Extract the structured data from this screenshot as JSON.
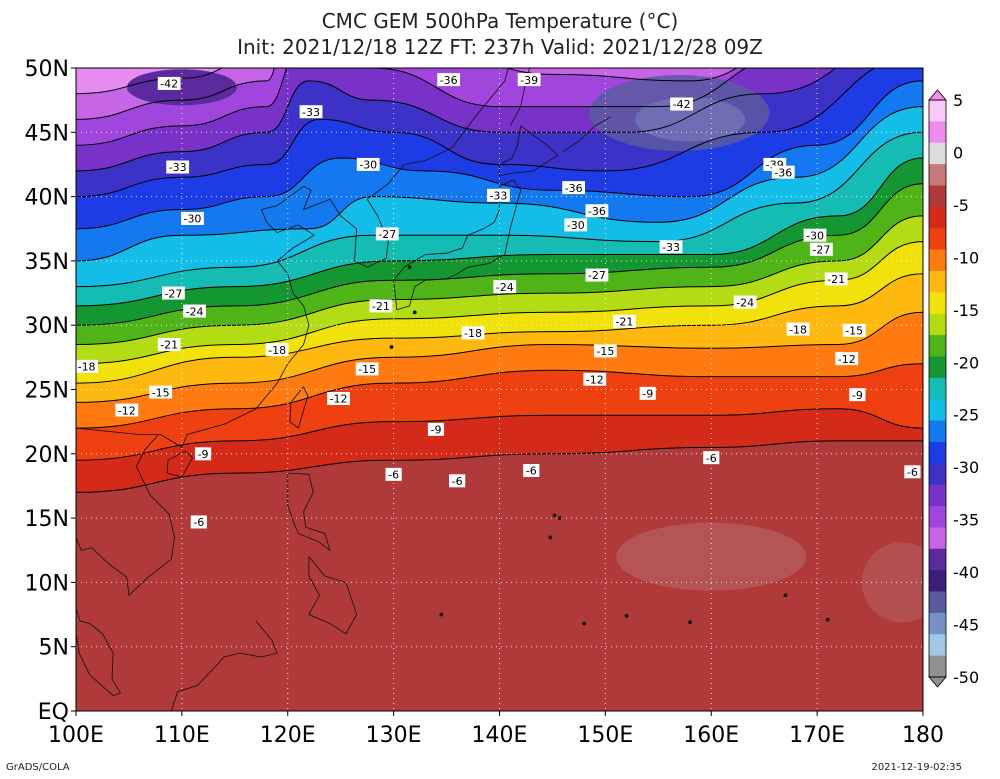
{
  "title_line1": "CMC GEM 500hPa Temperature (°C)",
  "title_line2": "Init: 2021/12/18 12Z  FT: 237h  Valid: 2021/12/28 09Z",
  "lat_labels": [
    "50N",
    "45N",
    "40N",
    "35N",
    "30N",
    "25N",
    "20N",
    "15N",
    "10N",
    "5N",
    "EQ"
  ],
  "lon_labels": [
    "100E",
    "110E",
    "120E",
    "130E",
    "140E",
    "150E",
    "160E",
    "170E",
    "180"
  ],
  "colorbar_labels": [
    "5",
    "0",
    "-5",
    "-10",
    "-15",
    "-20",
    "-25",
    "-30",
    "-35",
    "-40",
    "-45",
    "-50"
  ],
  "footer_left": "GrADS/COLA",
  "footer_right": "2021-12-19-02:35",
  "palette": [
    "#b03a3a",
    "#d42a1a",
    "#ee4010",
    "#ff7a10",
    "#ffb810",
    "#f2e20c",
    "#b4dc14",
    "#50b418",
    "#149632",
    "#14bcb4",
    "#14bce8",
    "#1478f0",
    "#1e3ce6",
    "#3c32c8",
    "#7832c8",
    "#a046dc",
    "#c864e6",
    "#e68cf0",
    "#fac8fa"
  ],
  "contour_labels": [
    {
      "text": "-42",
      "lon": 108.8,
      "lat": 48.8
    },
    {
      "text": "-36",
      "lon": 135.2,
      "lat": 49.1
    },
    {
      "text": "-39",
      "lon": 142.8,
      "lat": 49.1
    },
    {
      "text": "-42",
      "lon": 157.2,
      "lat": 47.2
    },
    {
      "text": "-33",
      "lon": 122.2,
      "lat": 46.6
    },
    {
      "text": "-33",
      "lon": 109.6,
      "lat": 42.3
    },
    {
      "text": "-30",
      "lon": 127.6,
      "lat": 42.5
    },
    {
      "text": "-39",
      "lon": 166.0,
      "lat": 42.5
    },
    {
      "text": "-36",
      "lon": 166.8,
      "lat": 41.9
    },
    {
      "text": "-36",
      "lon": 147.0,
      "lat": 40.7
    },
    {
      "text": "-33",
      "lon": 139.9,
      "lat": 40.1
    },
    {
      "text": "-36",
      "lon": 149.2,
      "lat": 38.9
    },
    {
      "text": "-30",
      "lon": 111.0,
      "lat": 38.3
    },
    {
      "text": "-30",
      "lon": 147.2,
      "lat": 37.8
    },
    {
      "text": "-27",
      "lon": 129.4,
      "lat": 37.1
    },
    {
      "text": "-30",
      "lon": 169.8,
      "lat": 37.0
    },
    {
      "text": "-33",
      "lon": 156.2,
      "lat": 36.1
    },
    {
      "text": "-27",
      "lon": 170.4,
      "lat": 35.9
    },
    {
      "text": "-27",
      "lon": 149.2,
      "lat": 33.9
    },
    {
      "text": "-21",
      "lon": 171.8,
      "lat": 33.6
    },
    {
      "text": "-24",
      "lon": 140.5,
      "lat": 33.0
    },
    {
      "text": "-27",
      "lon": 109.2,
      "lat": 32.5
    },
    {
      "text": "-24",
      "lon": 163.2,
      "lat": 31.8
    },
    {
      "text": "-24",
      "lon": 111.2,
      "lat": 31.1
    },
    {
      "text": "-21",
      "lon": 128.8,
      "lat": 31.5
    },
    {
      "text": "-21",
      "lon": 151.8,
      "lat": 30.3
    },
    {
      "text": "-18",
      "lon": 137.5,
      "lat": 29.4
    },
    {
      "text": "-18",
      "lon": 168.2,
      "lat": 29.7
    },
    {
      "text": "-15",
      "lon": 173.5,
      "lat": 29.6
    },
    {
      "text": "-21",
      "lon": 108.8,
      "lat": 28.5
    },
    {
      "text": "-18",
      "lon": 119.0,
      "lat": 28.1
    },
    {
      "text": "-15",
      "lon": 150.0,
      "lat": 28.0
    },
    {
      "text": "-12",
      "lon": 172.8,
      "lat": 27.4
    },
    {
      "text": "-18",
      "lon": 101.0,
      "lat": 26.8
    },
    {
      "text": "-15",
      "lon": 127.5,
      "lat": 26.6
    },
    {
      "text": "-12",
      "lon": 149.0,
      "lat": 25.8
    },
    {
      "text": "-15",
      "lon": 108.0,
      "lat": 24.8
    },
    {
      "text": "-9",
      "lon": 154.0,
      "lat": 24.7
    },
    {
      "text": "-12",
      "lon": 124.8,
      "lat": 24.3
    },
    {
      "text": "-9",
      "lon": 173.8,
      "lat": 24.6
    },
    {
      "text": "-12",
      "lon": 104.8,
      "lat": 23.4
    },
    {
      "text": "-9",
      "lon": 134.0,
      "lat": 21.9
    },
    {
      "text": "-9",
      "lon": 112.0,
      "lat": 20.0
    },
    {
      "text": "-6",
      "lon": 160.0,
      "lat": 19.7
    },
    {
      "text": "-6",
      "lon": 143.0,
      "lat": 18.7
    },
    {
      "text": "-6",
      "lon": 179.0,
      "lat": 18.6
    },
    {
      "text": "-6",
      "lon": 130.0,
      "lat": 18.4
    },
    {
      "text": "-6",
      "lon": 136.0,
      "lat": 17.9
    },
    {
      "text": "-6",
      "lon": 111.6,
      "lat": 14.7
    }
  ]
}
